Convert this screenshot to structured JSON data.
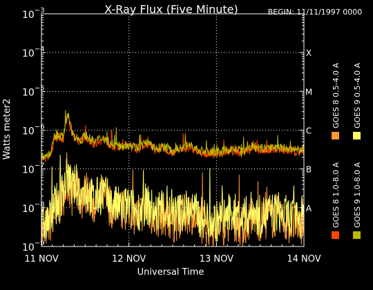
{
  "chart_data": {
    "type": "line",
    "title": "X-Ray Flux (Five Minute)",
    "begin_label": "BEGIN: 11/11/1997 0000",
    "xlabel": "Universal Time",
    "ylabel": "Watts meter2",
    "x_ticks": [
      "11 NOV",
      "12 NOV",
      "13 NOV",
      "14 NOV"
    ],
    "xlim": [
      0,
      3
    ],
    "y_scale": "log",
    "ylim": [
      1e-09,
      0.001
    ],
    "y_ticks": [
      {
        "mantissa": "10",
        "exponent": "−3",
        "value": 0.001
      },
      {
        "mantissa": "10",
        "exponent": "−4",
        "value": 0.0001
      },
      {
        "mantissa": "10",
        "exponent": "−5",
        "value": 1e-05
      },
      {
        "mantissa": "10",
        "exponent": "−6",
        "value": 1e-06
      },
      {
        "mantissa": "10",
        "exponent": "−7",
        "value": 1e-07
      },
      {
        "mantissa": "10",
        "exponent": "−8",
        "value": 1e-08
      },
      {
        "mantissa": "10",
        "exponent": "−9",
        "value": 1e-09
      }
    ],
    "flare_classes": [
      {
        "label": "X",
        "value": 0.0001
      },
      {
        "label": "M",
        "value": 1e-05
      },
      {
        "label": "C",
        "value": 1e-06
      },
      {
        "label": "B",
        "value": 1e-07
      },
      {
        "label": "A",
        "value": 1e-08
      }
    ],
    "grid": true,
    "legend_position": "right",
    "series": [
      {
        "name": "GOES 8 1.0-8.0 A",
        "color": "#ff4400",
        "band": "long",
        "x": [
          0,
          0.05,
          0.1,
          0.15,
          0.2,
          0.25,
          0.3,
          0.35,
          0.4,
          0.45,
          0.5,
          0.6,
          0.7,
          0.8,
          0.9,
          1.0,
          1.1,
          1.2,
          1.3,
          1.4,
          1.5,
          1.6,
          1.7,
          1.8,
          1.9,
          2.0,
          2.1,
          2.2,
          2.3,
          2.4,
          2.5,
          2.6,
          2.7,
          2.8,
          2.9,
          3.0
        ],
        "y": [
          1.8e-07,
          2e-07,
          2.2e-07,
          6e-07,
          7e-07,
          6e-07,
          2.5e-06,
          8e-07,
          6e-07,
          5e-07,
          7e-07,
          4.5e-07,
          6e-07,
          4e-07,
          3.5e-07,
          4e-07,
          3.2e-07,
          4.5e-07,
          3e-07,
          3.5e-07,
          2.8e-07,
          3.2e-07,
          3.8e-07,
          2.8e-07,
          2.6e-07,
          2.4e-07,
          2.8e-07,
          3e-07,
          2.5e-07,
          3.5e-07,
          3e-07,
          3.2e-07,
          3.4e-07,
          3e-07,
          2.8e-07,
          3e-07
        ]
      },
      {
        "name": "GOES 8 0.5-4.0 A",
        "color": "#ff9933",
        "band": "short",
        "x": [
          0,
          0.05,
          0.1,
          0.15,
          0.2,
          0.25,
          0.3,
          0.35,
          0.4,
          0.45,
          0.5,
          0.6,
          0.7,
          0.8,
          0.9,
          1.0,
          1.1,
          1.2,
          1.3,
          1.4,
          1.5,
          1.6,
          1.7,
          1.8,
          1.9,
          2.0,
          2.1,
          2.2,
          2.3,
          2.4,
          2.5,
          2.6,
          2.7,
          2.8,
          2.9,
          3.0
        ],
        "y": [
          2e-09,
          3e-09,
          4e-09,
          8e-09,
          1e-08,
          2e-08,
          5e-08,
          2e-08,
          3e-08,
          1.5e-08,
          2.5e-08,
          1.2e-08,
          2e-08,
          1e-08,
          8e-09,
          9e-09,
          6e-09,
          1e-08,
          5e-09,
          7e-09,
          4e-09,
          6e-09,
          8e-09,
          4e-09,
          3.5e-09,
          3e-09,
          4e-09,
          5e-09,
          3e-09,
          6e-09,
          4.5e-09,
          5e-09,
          6e-09,
          4e-09,
          3.5e-09,
          4e-09
        ]
      },
      {
        "name": "GOES 9 0.5-4.0 A",
        "color": "#ffff66",
        "band": "short",
        "x": [
          0,
          0.05,
          0.1,
          0.15,
          0.2,
          0.25,
          0.3,
          0.35,
          0.4,
          0.45,
          0.5,
          0.6,
          0.7,
          0.8,
          0.9,
          1.0,
          1.1,
          1.2,
          1.3,
          1.4,
          1.5,
          1.6,
          1.7,
          1.8,
          1.9,
          2.0,
          2.1,
          2.2,
          2.3,
          2.4,
          2.5,
          2.6,
          2.7,
          2.8,
          2.9,
          3.0
        ],
        "y": [
          3e-09,
          4e-09,
          5e-09,
          1e-08,
          1.5e-08,
          3e-08,
          7e-08,
          3e-08,
          4e-08,
          2e-08,
          3e-08,
          1.5e-08,
          2.5e-08,
          1.2e-08,
          1e-08,
          1.1e-08,
          8e-09,
          1.3e-08,
          7e-09,
          9e-09,
          6e-09,
          8e-09,
          1e-08,
          6e-09,
          5e-09,
          4.5e-09,
          6e-09,
          7e-09,
          5e-09,
          8e-09,
          6e-09,
          7e-09,
          8e-09,
          6e-09,
          5e-09,
          6e-09
        ]
      },
      {
        "name": "GOES 9 1.0-8.0 A",
        "color": "#bbbb00",
        "band": "long",
        "x": [
          0,
          0.05,
          0.1,
          0.15,
          0.2,
          0.25,
          0.3,
          0.35,
          0.4,
          0.45,
          0.5,
          0.6,
          0.7,
          0.8,
          0.9,
          1.0,
          1.1,
          1.2,
          1.3,
          1.4,
          1.5,
          1.6,
          1.7,
          1.8,
          1.9,
          2.0,
          2.1,
          2.2,
          2.3,
          2.4,
          2.5,
          2.6,
          2.7,
          2.8,
          2.9,
          3.0
        ],
        "y": [
          2e-07,
          2.2e-07,
          2.4e-07,
          6.5e-07,
          7.5e-07,
          6.5e-07,
          2.7e-06,
          8.5e-07,
          6.5e-07,
          5.5e-07,
          7.5e-07,
          5e-07,
          6.5e-07,
          4.5e-07,
          3.8e-07,
          4.4e-07,
          3.5e-07,
          5e-07,
          3.3e-07,
          3.8e-07,
          3e-07,
          3.5e-07,
          4.2e-07,
          3e-07,
          2.8e-07,
          2.6e-07,
          3e-07,
          3.3e-07,
          2.7e-07,
          3.8e-07,
          3.3e-07,
          3.5e-07,
          3.7e-07,
          3.3e-07,
          3e-07,
          3.3e-07
        ]
      }
    ]
  }
}
